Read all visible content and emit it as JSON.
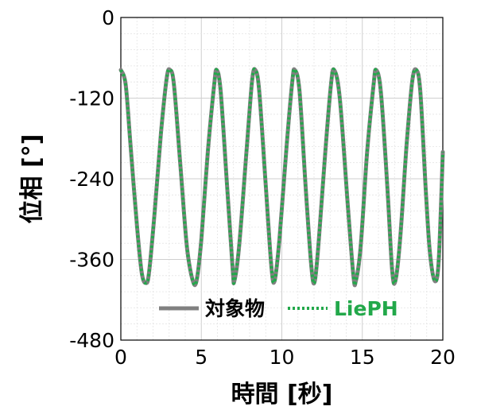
{
  "chart_data": {
    "type": "line",
    "xlabel": "時間 [秒]",
    "ylabel": "位相 [°]",
    "xlim": [
      0,
      20
    ],
    "ylim": [
      -480,
      0
    ],
    "xticks": [
      0,
      5,
      10,
      15,
      20
    ],
    "yticks": [
      0,
      -120,
      -240,
      -360,
      -480
    ],
    "xtick_labels": [
      "0",
      "5",
      "10",
      "15",
      "20"
    ],
    "ytick_labels": [
      "0",
      "-120",
      "-240",
      "-360",
      "-480"
    ],
    "grid": true,
    "minor_grid": true,
    "legend_position": "bottom-center",
    "series": [
      {
        "name": "対象物",
        "color": "#808080",
        "style": "solid",
        "x": [
          0,
          0.3,
          0.6,
          1.0,
          1.3,
          1.55,
          1.75,
          2.1,
          2.5,
          2.85,
          3.05,
          3.3,
          3.7,
          4.1,
          4.45,
          4.7,
          5.0,
          5.4,
          5.8,
          5.95,
          6.2,
          6.6,
          6.95,
          7.05,
          7.35,
          7.8,
          8.15,
          8.35,
          8.6,
          9.0,
          9.35,
          9.55,
          9.85,
          10.3,
          10.65,
          10.8,
          11.1,
          11.5,
          11.85,
          12.05,
          12.3,
          12.7,
          13.05,
          13.25,
          13.6,
          14.1,
          14.45,
          14.6,
          14.9,
          15.3,
          15.7,
          15.85,
          16.15,
          16.55,
          16.85,
          17.05,
          17.35,
          17.75,
          18.1,
          18.35,
          18.6,
          18.95,
          19.2,
          19.5,
          19.75,
          20.0
        ],
        "y": [
          -78,
          -100,
          -190,
          -310,
          -380,
          -395,
          -380,
          -290,
          -170,
          -90,
          -78,
          -100,
          -220,
          -340,
          -390,
          -392,
          -330,
          -200,
          -100,
          -78,
          -110,
          -250,
          -375,
          -392,
          -340,
          -200,
          -95,
          -78,
          -110,
          -250,
          -370,
          -392,
          -330,
          -190,
          -95,
          -78,
          -110,
          -260,
          -375,
          -392,
          -330,
          -200,
          -100,
          -78,
          -120,
          -280,
          -385,
          -392,
          -340,
          -200,
          -100,
          -78,
          -110,
          -250,
          -375,
          -392,
          -330,
          -190,
          -95,
          -78,
          -110,
          -260,
          -350,
          -392,
          -360,
          -200
        ]
      },
      {
        "name": "LiePH",
        "color": "#22a84a",
        "style": "dotted",
        "x": [
          0,
          0.3,
          0.6,
          1.0,
          1.3,
          1.55,
          1.75,
          2.1,
          2.5,
          2.85,
          3.05,
          3.3,
          3.7,
          4.1,
          4.45,
          4.7,
          5.0,
          5.4,
          5.8,
          5.95,
          6.2,
          6.6,
          6.95,
          7.05,
          7.35,
          7.8,
          8.15,
          8.35,
          8.6,
          9.0,
          9.35,
          9.55,
          9.85,
          10.3,
          10.65,
          10.8,
          11.1,
          11.5,
          11.85,
          12.05,
          12.3,
          12.7,
          13.05,
          13.25,
          13.6,
          14.1,
          14.45,
          14.6,
          14.9,
          15.3,
          15.7,
          15.85,
          16.15,
          16.55,
          16.85,
          17.05,
          17.35,
          17.75,
          18.1,
          18.35,
          18.6,
          18.95,
          19.2,
          19.5,
          19.75,
          20.0
        ],
        "y": [
          -78,
          -100,
          -190,
          -310,
          -380,
          -395,
          -380,
          -290,
          -170,
          -90,
          -78,
          -100,
          -220,
          -340,
          -390,
          -392,
          -330,
          -200,
          -100,
          -78,
          -110,
          -250,
          -375,
          -392,
          -340,
          -200,
          -95,
          -78,
          -110,
          -250,
          -370,
          -392,
          -330,
          -190,
          -95,
          -78,
          -110,
          -260,
          -375,
          -392,
          -330,
          -200,
          -100,
          -78,
          -120,
          -280,
          -385,
          -392,
          -340,
          -200,
          -100,
          -78,
          -110,
          -250,
          -375,
          -392,
          -330,
          -190,
          -95,
          -78,
          -110,
          -260,
          -350,
          -392,
          -360,
          -200
        ]
      }
    ]
  }
}
